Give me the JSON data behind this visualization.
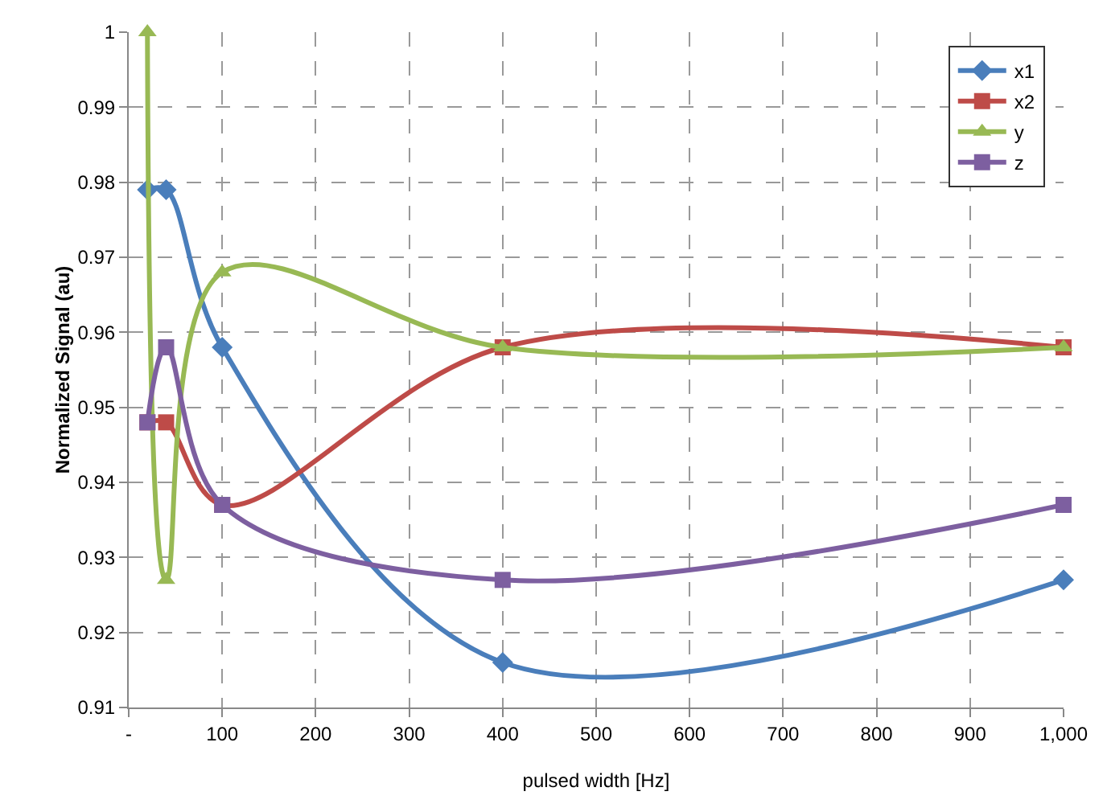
{
  "chart_data": {
    "type": "line",
    "xlabel": "pulsed width [Hz]",
    "ylabel": "Normalized Signal (au)",
    "x": [
      20,
      40,
      100,
      400,
      1000
    ],
    "series": [
      {
        "name": "x1",
        "color": "#4a7ebb",
        "marker": "diamond",
        "values": [
          0.979,
          0.979,
          0.958,
          0.916,
          0.927
        ]
      },
      {
        "name": "x2",
        "color": "#be4b48",
        "marker": "square",
        "values": [
          0.948,
          0.948,
          0.937,
          0.958,
          0.958
        ]
      },
      {
        "name": "y",
        "color": "#98b954",
        "marker": "triangle",
        "values": [
          1.0,
          0.927,
          0.968,
          0.958,
          0.958
        ]
      },
      {
        "name": "z",
        "color": "#7d5fa0",
        "marker": "square",
        "values": [
          0.948,
          0.958,
          0.937,
          0.927,
          0.937
        ]
      }
    ],
    "xlim": [
      0,
      1000
    ],
    "xticks": [
      {
        "value": 0,
        "label": "-"
      },
      100,
      200,
      300,
      400,
      500,
      600,
      700,
      800,
      900,
      {
        "value": 1000,
        "label": "1,000"
      }
    ],
    "ylim": [
      0.91,
      1
    ],
    "yticks": [
      0.91,
      0.92,
      0.93,
      0.94,
      0.95,
      0.96,
      0.97,
      0.98,
      0.99,
      1
    ],
    "grid": true,
    "legend": "top right",
    "line_style": "solid"
  }
}
